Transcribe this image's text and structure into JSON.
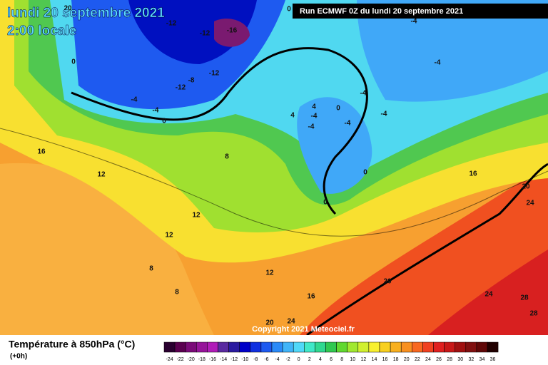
{
  "header": {
    "date": "lundi 20 septembre 2021",
    "time": "2:00 locale",
    "run": "Run ECMWF 0Z du lundi 20 septembre 2021"
  },
  "map": {
    "labels": [
      -12,
      -12,
      -16,
      0,
      -4,
      0,
      -4,
      -8,
      -12,
      -12,
      -4,
      -4,
      0,
      -4,
      -4,
      4,
      4,
      -4,
      0,
      -4,
      -4,
      0,
      0,
      8,
      16,
      12,
      16,
      20,
      24,
      12,
      12,
      8,
      8,
      12,
      16,
      20,
      24,
      28,
      28,
      20,
      24,
      20
    ]
  },
  "copyright": "Copyright 2021 Meteociel.fr",
  "legend": {
    "title": "Température à 850hPa (°C)",
    "step": "(+0h)",
    "labels": [
      -24,
      -22,
      -20,
      -18,
      -16,
      -14,
      -12,
      -10,
      -8,
      -6,
      -4,
      -2,
      0,
      2,
      4,
      6,
      8,
      10,
      12,
      14,
      16,
      18,
      20,
      22,
      24,
      26,
      28,
      30,
      32,
      34,
      36
    ],
    "colors": [
      "#2a0030",
      "#5a0050",
      "#7a0a78",
      "#96149a",
      "#b01cb8",
      "#5a2aa0",
      "#2a1aa0",
      "#0000c8",
      "#1030e0",
      "#1e5af0",
      "#2a8af8",
      "#40b4f8",
      "#50d8f8",
      "#40e8c8",
      "#30d890",
      "#30c850",
      "#60d830",
      "#a0e830",
      "#d0f030",
      "#f8f030",
      "#f8d020",
      "#f8b020",
      "#f89020",
      "#f86820",
      "#f04020",
      "#e02020",
      "#c81818",
      "#a01010",
      "#801010",
      "#600808",
      "#200000"
    ]
  }
}
